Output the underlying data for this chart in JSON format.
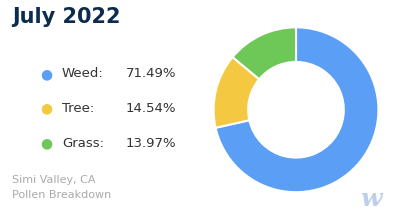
{
  "title": "July 2022",
  "title_color": "#0d2b4e",
  "subtitle": "Simi Valley, CA\nPollen Breakdown",
  "subtitle_color": "#aaaaaa",
  "watermark": "w",
  "watermark_color": "#c0cfe8",
  "categories": [
    "Weed",
    "Tree",
    "Grass"
  ],
  "values": [
    71.49,
    14.54,
    13.97
  ],
  "labels": [
    "71.49%",
    "14.54%",
    "13.97%"
  ],
  "colors": [
    "#5b9ef6",
    "#f5c842",
    "#6dc857"
  ],
  "background_color": "#ffffff",
  "legend_text_color": "#333333",
  "donut_width": 0.42,
  "startangle": 90,
  "title_fontsize": 15,
  "legend_fontsize": 9.5,
  "subtitle_fontsize": 8,
  "watermark_fontsize": 18
}
